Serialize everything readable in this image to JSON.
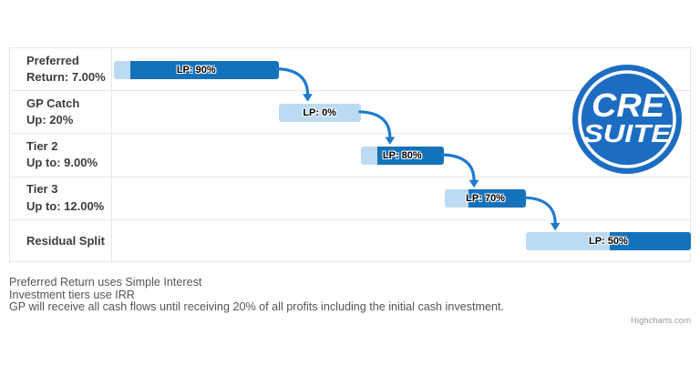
{
  "chart_data": {
    "type": "bar",
    "variant": "horizontal-waterfall-gantt",
    "title": "",
    "legend": false,
    "axis_labels_visible": false,
    "grid": true,
    "categories": [
      {
        "line1": "Preferred",
        "line2": "Return: 7.00%"
      },
      {
        "line1": "GP Catch",
        "line2": "Up: 20%"
      },
      {
        "line1": "Tier 2",
        "line2": "Up to: 9.00%"
      },
      {
        "line1": "Tier 3",
        "line2": "Up to: 12.00%"
      },
      {
        "line1": "Residual Split",
        "line2": ""
      }
    ],
    "bars": [
      {
        "label": "LP: 90%",
        "lp_pct": 90,
        "gp_pct": 10,
        "start": 0.3,
        "light_end": 3.1,
        "end": 28.7
      },
      {
        "label": "LP: 0%",
        "lp_pct": 0,
        "gp_pct": 100,
        "start": 28.7,
        "light_end": 42.9,
        "end": 42.9
      },
      {
        "label": "LP: 80%",
        "lp_pct": 80,
        "gp_pct": 20,
        "start": 42.9,
        "light_end": 45.7,
        "end": 57.2
      },
      {
        "label": "LP: 70%",
        "lp_pct": 70,
        "gp_pct": 30,
        "start": 57.4,
        "light_end": 61.4,
        "end": 71.4
      },
      {
        "label": "LP: 50%",
        "lp_pct": 50,
        "gp_pct": 50,
        "start": 71.4,
        "light_end": 85.8,
        "end": 99.8
      }
    ],
    "colors": {
      "lp_dark": "#1472ba",
      "gp_light": "#bcdbf3",
      "arrow": "#1e7ad2",
      "grid_line": "#e6e8ed",
      "label_text": "#000000"
    }
  },
  "logo": {
    "line1": "CRE",
    "line2": "SUITE",
    "color": "#1c6dc1"
  },
  "annotations": {
    "lines": [
      "Preferred Return uses Simple Interest",
      "Investment tiers use IRR",
      "GP will receive all cash flows until receiving 20% of all profits including the initial cash investment."
    ]
  },
  "credit": {
    "label": "Highcharts.com"
  }
}
